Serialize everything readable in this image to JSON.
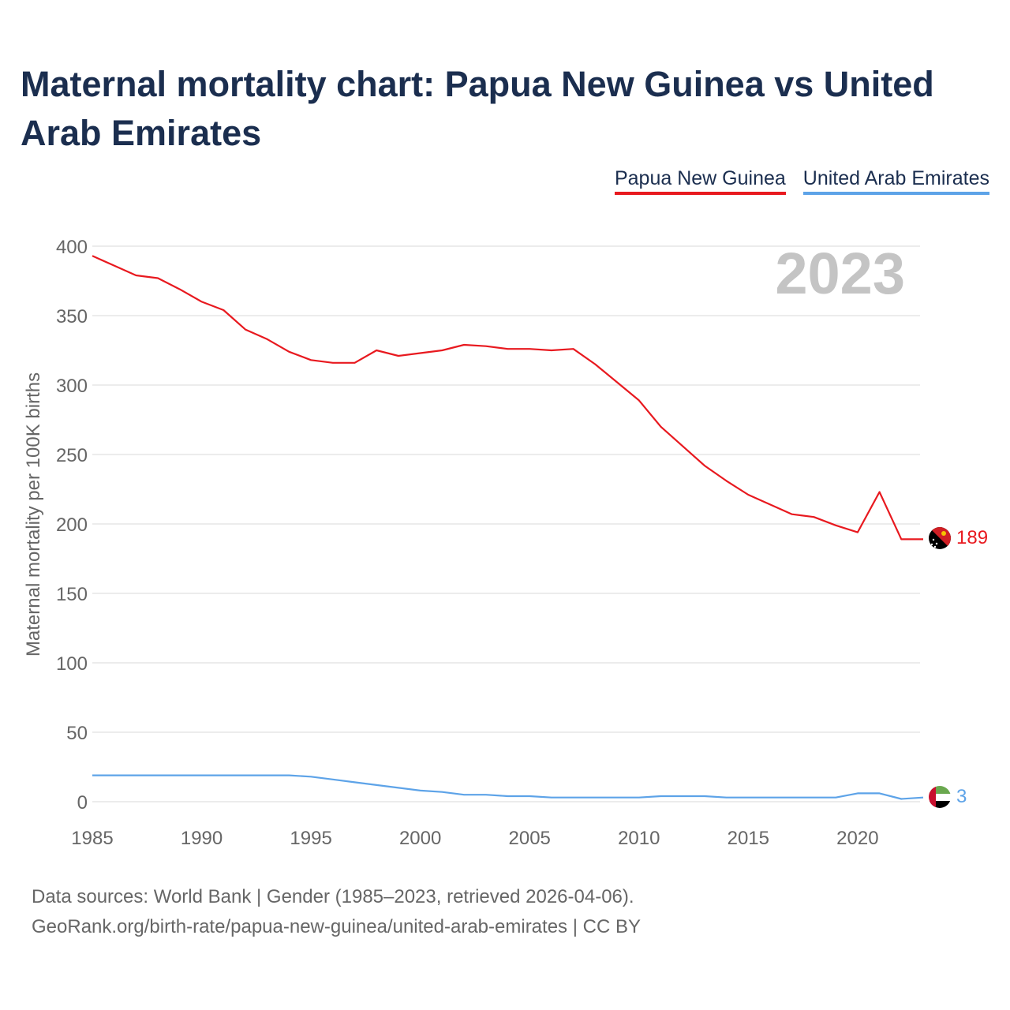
{
  "title": "Maternal mortality chart: Papua New Guinea vs United Arab Emirates",
  "legend": {
    "papua": "Papua New Guinea",
    "uae": "United Arab Emirates"
  },
  "year_watermark": "2023",
  "footer": {
    "line1": "Data sources: World Bank | Gender (1985–2023, retrieved 2026-04-06).",
    "line2": "GeoRank.org/birth-rate/papua-new-guinea/united-arab-emirates | CC BY"
  },
  "chart_data": {
    "type": "line",
    "title": "Maternal mortality chart: Papua New Guinea vs United Arab Emirates",
    "xlabel": "",
    "ylabel": "Maternal mortality per 100K births",
    "xlim": [
      1985,
      2023
    ],
    "ylim": [
      0,
      400
    ],
    "yticks": [
      0,
      50,
      100,
      150,
      200,
      250,
      300,
      350,
      400
    ],
    "xticks": [
      1985,
      1990,
      1995,
      2000,
      2005,
      2010,
      2015,
      2020
    ],
    "grid": true,
    "legend_position": "top-right",
    "x": [
      1985,
      1986,
      1987,
      1988,
      1989,
      1990,
      1991,
      1992,
      1993,
      1994,
      1995,
      1996,
      1997,
      1998,
      1999,
      2000,
      2001,
      2002,
      2003,
      2004,
      2005,
      2006,
      2007,
      2008,
      2009,
      2010,
      2011,
      2012,
      2013,
      2014,
      2015,
      2016,
      2017,
      2018,
      2019,
      2020,
      2021,
      2022,
      2023
    ],
    "series": [
      {
        "name": "Papua New Guinea",
        "color": "#e8191f",
        "end_label": "189",
        "values": [
          393,
          386,
          379,
          377,
          369,
          360,
          354,
          340,
          333,
          324,
          318,
          316,
          316,
          325,
          321,
          323,
          325,
          329,
          328,
          326,
          326,
          325,
          326,
          315,
          302,
          289,
          270,
          256,
          242,
          231,
          221,
          214,
          207,
          205,
          199,
          194,
          223,
          189,
          189
        ]
      },
      {
        "name": "United Arab Emirates",
        "color": "#5da3e8",
        "end_label": "3",
        "values": [
          19,
          19,
          19,
          19,
          19,
          19,
          19,
          19,
          19,
          19,
          18,
          16,
          14,
          12,
          10,
          8,
          7,
          5,
          5,
          4,
          4,
          3,
          3,
          3,
          3,
          3,
          4,
          4,
          4,
          3,
          3,
          3,
          3,
          3,
          3,
          6,
          6,
          2,
          3
        ]
      }
    ]
  }
}
